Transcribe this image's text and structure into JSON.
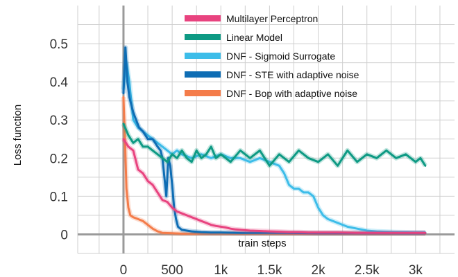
{
  "chart_data": {
    "type": "line",
    "title": "",
    "xlabel": "train steps",
    "ylabel": "Loss function",
    "xlim": [
      -470,
      3400
    ],
    "ylim": [
      -0.05,
      0.6
    ],
    "grid": true,
    "legend_position": "top-right",
    "x_ticks": [
      0,
      500,
      1000,
      1500,
      2000,
      2500,
      3000
    ],
    "x_tick_labels": [
      "0",
      "500",
      "1k",
      "1.5k",
      "2k",
      "2.5k",
      "3k"
    ],
    "y_ticks": [
      0,
      0.1,
      0.2,
      0.3,
      0.4,
      0.5
    ],
    "y_tick_labels": [
      "0",
      "0.1",
      "0.2",
      "0.3",
      "0.4",
      "0.5"
    ],
    "series": [
      {
        "name": "Multilayer Perceptron",
        "color": "#e8437f",
        "x": [
          0,
          50,
          100,
          150,
          200,
          250,
          300,
          350,
          400,
          450,
          500,
          550,
          600,
          650,
          700,
          750,
          800,
          850,
          900,
          950,
          1000,
          1050,
          1100,
          1150,
          1200,
          1300,
          1400,
          1500,
          1600,
          1700,
          1800,
          1900,
          2000,
          2200,
          2400,
          2600,
          2800,
          3000,
          3100
        ],
        "y": [
          0.25,
          0.23,
          0.22,
          0.17,
          0.16,
          0.14,
          0.13,
          0.11,
          0.09,
          0.085,
          0.07,
          0.06,
          0.055,
          0.05,
          0.045,
          0.04,
          0.035,
          0.03,
          0.025,
          0.022,
          0.02,
          0.018,
          0.015,
          0.013,
          0.012,
          0.01,
          0.009,
          0.008,
          0.007,
          0.006,
          0.006,
          0.005,
          0.005,
          0.005,
          0.004,
          0.004,
          0.004,
          0.004,
          0.004
        ]
      },
      {
        "name": "Linear Model",
        "color": "#0e9a84",
        "x": [
          0,
          50,
          100,
          150,
          200,
          250,
          300,
          350,
          400,
          450,
          500,
          550,
          600,
          650,
          700,
          750,
          800,
          850,
          900,
          950,
          1000,
          1100,
          1200,
          1300,
          1400,
          1500,
          1600,
          1700,
          1800,
          1900,
          2000,
          2100,
          2200,
          2300,
          2400,
          2500,
          2600,
          2700,
          2800,
          2900,
          3000,
          3050,
          3100
        ],
        "y": [
          0.29,
          0.26,
          0.24,
          0.25,
          0.23,
          0.23,
          0.22,
          0.21,
          0.2,
          0.19,
          0.21,
          0.2,
          0.22,
          0.2,
          0.19,
          0.22,
          0.2,
          0.21,
          0.23,
          0.2,
          0.21,
          0.19,
          0.22,
          0.2,
          0.22,
          0.18,
          0.21,
          0.19,
          0.22,
          0.2,
          0.19,
          0.21,
          0.18,
          0.22,
          0.19,
          0.21,
          0.2,
          0.22,
          0.2,
          0.21,
          0.19,
          0.2,
          0.18
        ]
      },
      {
        "name": "DNF - Sigmoid Surrogate",
        "color": "#3dbde9",
        "x": [
          0,
          30,
          60,
          100,
          150,
          200,
          250,
          300,
          350,
          400,
          450,
          500,
          550,
          600,
          700,
          800,
          900,
          1000,
          1100,
          1200,
          1300,
          1400,
          1500,
          1600,
          1650,
          1700,
          1750,
          1800,
          1850,
          1900,
          1950,
          2000,
          2050,
          2100,
          2200,
          2300,
          2400,
          2500,
          2600,
          2800,
          3000,
          3100
        ],
        "y": [
          0.38,
          0.45,
          0.4,
          0.3,
          0.28,
          0.27,
          0.26,
          0.25,
          0.24,
          0.23,
          0.22,
          0.21,
          0.22,
          0.21,
          0.2,
          0.21,
          0.2,
          0.21,
          0.2,
          0.2,
          0.19,
          0.2,
          0.19,
          0.18,
          0.16,
          0.13,
          0.12,
          0.12,
          0.11,
          0.11,
          0.1,
          0.07,
          0.05,
          0.04,
          0.03,
          0.02,
          0.015,
          0.01,
          0.008,
          0.006,
          0.005,
          0.005
        ]
      },
      {
        "name": "DNF - STE with adaptive noise",
        "color": "#0e6db4",
        "x": [
          0,
          20,
          40,
          60,
          80,
          100,
          130,
          160,
          200,
          250,
          300,
          350,
          380,
          400,
          420,
          440,
          460,
          480,
          500,
          520,
          540,
          560,
          600,
          650,
          700,
          800,
          900,
          1000,
          1200,
          1400,
          1600,
          2000,
          2500,
          3000,
          3100
        ],
        "y": [
          0.37,
          0.49,
          0.4,
          0.36,
          0.34,
          0.32,
          0.3,
          0.28,
          0.27,
          0.25,
          0.25,
          0.23,
          0.22,
          0.2,
          0.15,
          0.1,
          0.2,
          0.18,
          0.13,
          0.07,
          0.04,
          0.02,
          0.012,
          0.01,
          0.008,
          0.006,
          0.005,
          0.005,
          0.004,
          0.004,
          0.004,
          0.003,
          0.003,
          0.003,
          0.003
        ]
      },
      {
        "name": "DNF - Bop with adaptive noise",
        "color": "#f47c4a",
        "x": [
          0,
          15,
          30,
          50,
          70,
          100,
          150,
          200,
          250,
          300,
          350,
          400,
          500,
          600,
          800,
          1000,
          1500,
          2000,
          2500,
          3000,
          3100
        ],
        "y": [
          0.36,
          0.25,
          0.12,
          0.07,
          0.05,
          0.045,
          0.04,
          0.035,
          0.025,
          0.015,
          0.008,
          0.004,
          0.003,
          0.002,
          0.002,
          0.002,
          0.002,
          0.002,
          0.002,
          0.002,
          0.002
        ]
      }
    ]
  }
}
